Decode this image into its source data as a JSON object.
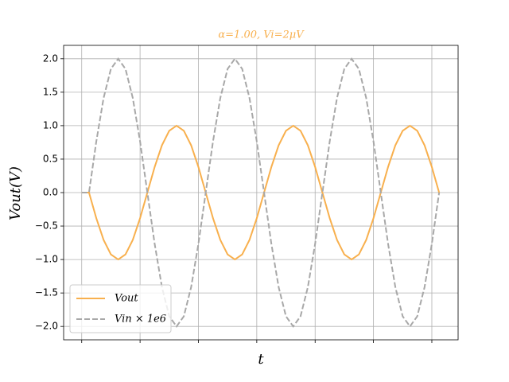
{
  "chart_data": {
    "type": "line",
    "title": "α=1.00, Vi=2μV",
    "x_label": "t",
    "y_label": "Vout(V)",
    "x": [
      0,
      0.125,
      0.25,
      0.375,
      0.5,
      0.625,
      0.75,
      0.875,
      1,
      1.125,
      1.25,
      1.375,
      1.5,
      1.625,
      1.75,
      1.875,
      2,
      2.125,
      2.25,
      2.375,
      2.5,
      2.625,
      2.75,
      2.875,
      3,
      3.125,
      3.25,
      3.375,
      3.5,
      3.625,
      3.75,
      3.875,
      4,
      4.125,
      4.25,
      4.375,
      4.5,
      4.625,
      4.75,
      4.875,
      5,
      5.125,
      5.25,
      5.375,
      5.5,
      5.625,
      5.75,
      5.875,
      6,
      6.125
    ],
    "series": [
      {
        "name": "Vout",
        "color": "#f8b04e",
        "dash": false,
        "values": [
          0,
          0,
          -0.383,
          -0.707,
          -0.924,
          -1,
          -0.924,
          -0.707,
          -0.383,
          0,
          0.383,
          0.707,
          0.924,
          1,
          0.924,
          0.707,
          0.383,
          0,
          -0.383,
          -0.707,
          -0.924,
          -1,
          -0.924,
          -0.707,
          -0.383,
          0,
          0.383,
          0.707,
          0.924,
          1,
          0.924,
          0.707,
          0.383,
          0,
          -0.383,
          -0.707,
          -0.924,
          -1,
          -0.924,
          -0.707,
          -0.383,
          0,
          0.383,
          0.707,
          0.924,
          1,
          0.924,
          0.707,
          0.383,
          0
        ]
      },
      {
        "name": "Vin × 1e6",
        "color": "#a8a8a8",
        "dash": true,
        "values": [
          0,
          0,
          0.765,
          1.414,
          1.848,
          2,
          1.848,
          1.414,
          0.765,
          0,
          -0.765,
          -1.414,
          -1.848,
          -2,
          -1.848,
          -1.414,
          -0.765,
          0,
          0.765,
          1.414,
          1.848,
          2,
          1.848,
          1.414,
          0.765,
          0,
          -0.765,
          -1.414,
          -1.848,
          -2,
          -1.848,
          -1.414,
          -0.765,
          0,
          0.765,
          1.414,
          1.848,
          2,
          1.848,
          1.414,
          0.765,
          0,
          -0.765,
          -1.414,
          -1.848,
          -2,
          -1.848,
          -1.414,
          -0.765,
          0
        ]
      }
    ],
    "xlim": [
      -0.31,
      6.45
    ],
    "xticks": [
      0,
      1,
      2,
      3,
      4,
      5,
      6
    ],
    "ylim": [
      -2.2,
      2.2
    ],
    "yticks": [
      {
        "value": -2,
        "label": "−2.0"
      },
      {
        "value": -1.5,
        "label": "−1.5"
      },
      {
        "value": -1,
        "label": "−1.0"
      },
      {
        "value": -0.5,
        "label": "−0.5"
      },
      {
        "value": 0,
        "label": "0.0"
      },
      {
        "value": 0.5,
        "label": "0.5"
      },
      {
        "value": 1,
        "label": "1.0"
      },
      {
        "value": 1.5,
        "label": "1.5"
      },
      {
        "value": 2,
        "label": "2.0"
      }
    ],
    "grid": true,
    "legend": "lower left"
  }
}
